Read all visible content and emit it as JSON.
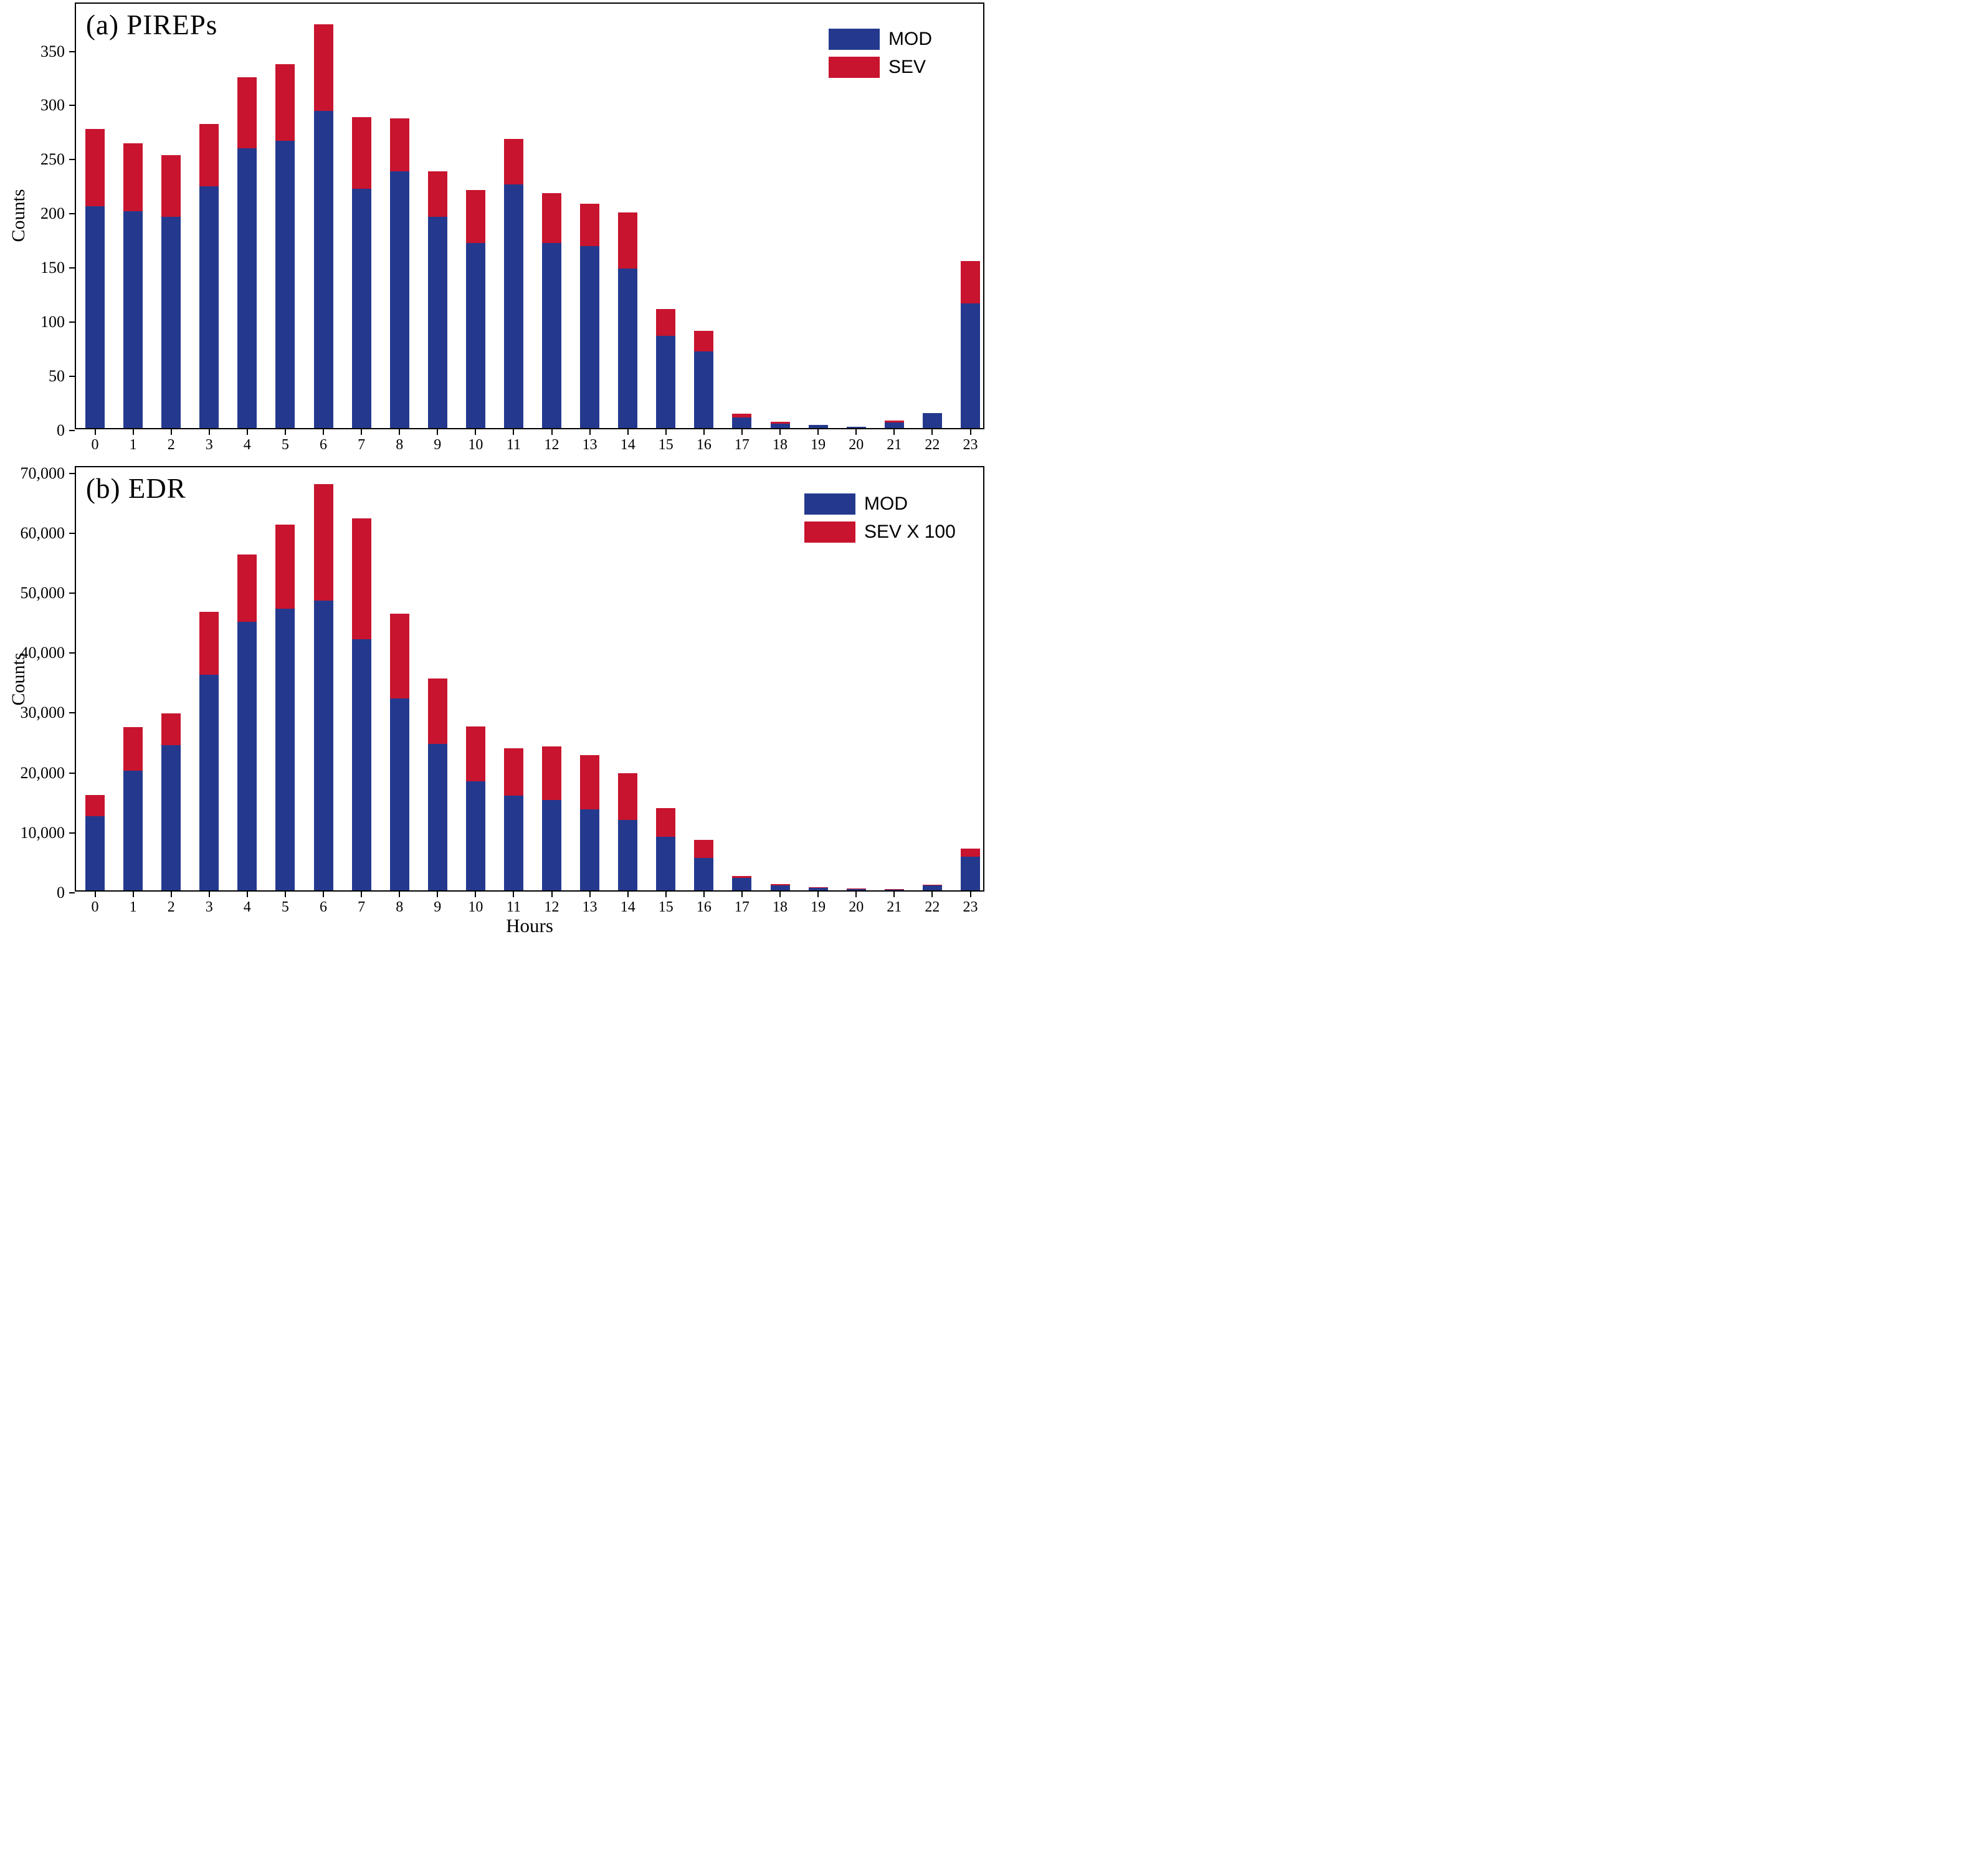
{
  "figure": {
    "background": "#ffffff"
  },
  "colors": {
    "mod_blue": "#24398E",
    "sev_red": "#C8142F",
    "axis": "#000000"
  },
  "xlabel": "Hours",
  "chart_data": [
    {
      "type": "bar",
      "stacked": true,
      "title": "(a) PIREPs",
      "xlabel": "Hours",
      "ylabel": "Counts",
      "categories": [
        "0",
        "1",
        "2",
        "3",
        "4",
        "5",
        "6",
        "7",
        "8",
        "9",
        "10",
        "11",
        "12",
        "13",
        "14",
        "15",
        "16",
        "17",
        "18",
        "19",
        "20",
        "21",
        "22",
        "23"
      ],
      "ylim": [
        0,
        394
      ],
      "yticks": [
        0,
        50,
        100,
        150,
        200,
        250,
        300,
        350
      ],
      "ytick_labels": [
        "0",
        "50",
        "100",
        "150",
        "200",
        "250",
        "300",
        "350"
      ],
      "grid": false,
      "legend_position": "upper right",
      "series": [
        {
          "name": "MOD",
          "color": "#24398E",
          "values": [
            205,
            200,
            195,
            223,
            258,
            265,
            293,
            221,
            237,
            195,
            171,
            225,
            171,
            168,
            147,
            85,
            71,
            10,
            4,
            3,
            1,
            5,
            14,
            115
          ]
        },
        {
          "name": "SEV",
          "color": "#C8142F",
          "values": [
            71,
            63,
            57,
            58,
            66,
            71,
            80,
            66,
            49,
            42,
            49,
            42,
            46,
            39,
            52,
            25,
            19,
            3,
            2,
            0,
            0,
            2,
            0,
            39
          ]
        }
      ]
    },
    {
      "type": "bar",
      "stacked": true,
      "title": "(b) EDR",
      "xlabel": "Hours",
      "ylabel": "Counts",
      "categories": [
        "0",
        "1",
        "2",
        "3",
        "4",
        "5",
        "6",
        "7",
        "8",
        "9",
        "10",
        "11",
        "12",
        "13",
        "14",
        "15",
        "16",
        "17",
        "18",
        "19",
        "20",
        "21",
        "22",
        "23"
      ],
      "ylim": [
        0,
        71000
      ],
      "yticks": [
        0,
        10000,
        20000,
        30000,
        40000,
        50000,
        60000,
        70000
      ],
      "ytick_labels": [
        "0",
        "10,000",
        "20,000",
        "30,000",
        "40,000",
        "50,000",
        "60,000",
        "70,000"
      ],
      "grid": false,
      "legend_position": "upper right",
      "series": [
        {
          "name": "MOD",
          "color": "#24398E",
          "values": [
            12400,
            20000,
            24200,
            36000,
            44800,
            47000,
            48300,
            41900,
            32000,
            24400,
            18200,
            15800,
            15100,
            13500,
            11800,
            8900,
            5400,
            2100,
            800,
            400,
            200,
            150,
            800,
            5600
          ]
        },
        {
          "name": "SEV X 100",
          "color": "#C8142F",
          "values": [
            3500,
            7200,
            5300,
            10500,
            11200,
            14000,
            19500,
            20200,
            14200,
            11000,
            9100,
            7900,
            8900,
            9100,
            7800,
            4800,
            3000,
            300,
            200,
            100,
            100,
            50,
            100,
            1400
          ]
        }
      ]
    }
  ]
}
